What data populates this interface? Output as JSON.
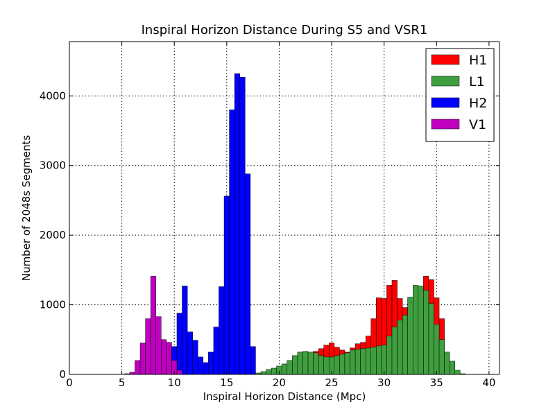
{
  "chart_data": {
    "type": "bar",
    "chart_kind": "histogram",
    "title": "Inspiral Horizon Distance During S5 and VSR1",
    "xlabel": "Inspiral Horizon Distance (Mpc)",
    "ylabel": "Number of 2048s Segments",
    "xlim": [
      0,
      41
    ],
    "ylim": [
      0,
      4780
    ],
    "x_ticks": [
      0,
      5,
      10,
      15,
      20,
      25,
      30,
      35,
      40
    ],
    "y_ticks": [
      0,
      1000,
      2000,
      3000,
      4000
    ],
    "grid": true,
    "legend_position": "top-right",
    "bin_width": 0.5,
    "series": [
      {
        "name": "H1",
        "color": "#ff0000",
        "bins": [
          [
            22.5,
            200
          ],
          [
            23.0,
            270
          ],
          [
            23.5,
            330
          ],
          [
            24.0,
            370
          ],
          [
            24.5,
            420
          ],
          [
            25.0,
            450
          ],
          [
            25.5,
            390
          ],
          [
            26.0,
            350
          ],
          [
            26.5,
            320
          ],
          [
            27.0,
            380
          ],
          [
            27.5,
            440
          ],
          [
            28.0,
            460
          ],
          [
            28.5,
            550
          ],
          [
            29.0,
            800
          ],
          [
            29.5,
            1100
          ],
          [
            30.0,
            1090
          ],
          [
            30.5,
            1280
          ],
          [
            31.0,
            1350
          ],
          [
            31.5,
            1090
          ],
          [
            32.0,
            960
          ],
          [
            32.5,
            1080
          ],
          [
            33.0,
            1140
          ],
          [
            33.5,
            1130
          ],
          [
            34.0,
            1410
          ],
          [
            34.5,
            1360
          ],
          [
            35.0,
            1100
          ],
          [
            35.5,
            800
          ]
        ]
      },
      {
        "name": "L1",
        "color": "#3f9f3f",
        "bins": [
          [
            17.5,
            10
          ],
          [
            18.0,
            20
          ],
          [
            18.5,
            40
          ],
          [
            19.0,
            70
          ],
          [
            19.5,
            90
          ],
          [
            20.0,
            120
          ],
          [
            20.5,
            150
          ],
          [
            21.0,
            200
          ],
          [
            21.5,
            270
          ],
          [
            22.0,
            320
          ],
          [
            22.5,
            330
          ],
          [
            23.0,
            320
          ],
          [
            23.5,
            310
          ],
          [
            24.0,
            270
          ],
          [
            24.5,
            250
          ],
          [
            25.0,
            250
          ],
          [
            25.5,
            270
          ],
          [
            26.0,
            290
          ],
          [
            26.5,
            310
          ],
          [
            27.0,
            350
          ],
          [
            27.5,
            360
          ],
          [
            28.0,
            370
          ],
          [
            28.5,
            380
          ],
          [
            29.0,
            390
          ],
          [
            29.5,
            410
          ],
          [
            30.0,
            420
          ],
          [
            30.5,
            550
          ],
          [
            31.0,
            680
          ],
          [
            31.5,
            780
          ],
          [
            32.0,
            850
          ],
          [
            32.5,
            1110
          ],
          [
            33.0,
            1280
          ],
          [
            33.5,
            1270
          ],
          [
            34.0,
            1210
          ],
          [
            34.5,
            1020
          ],
          [
            35.0,
            720
          ],
          [
            35.5,
            500
          ],
          [
            36.0,
            320
          ],
          [
            36.5,
            190
          ],
          [
            37.0,
            60
          ],
          [
            37.5,
            10
          ]
        ]
      },
      {
        "name": "H2",
        "color": "#0000ff",
        "bins": [
          [
            9.5,
            160
          ],
          [
            10.0,
            400
          ],
          [
            10.5,
            880
          ],
          [
            11.0,
            1270
          ],
          [
            11.5,
            610
          ],
          [
            12.0,
            490
          ],
          [
            12.5,
            250
          ],
          [
            13.0,
            170
          ],
          [
            13.5,
            320
          ],
          [
            14.0,
            680
          ],
          [
            14.5,
            1260
          ],
          [
            15.0,
            2560
          ],
          [
            15.5,
            3800
          ],
          [
            16.0,
            4320
          ],
          [
            16.5,
            4270
          ],
          [
            17.0,
            2880
          ],
          [
            17.5,
            400
          ]
        ]
      },
      {
        "name": "V1",
        "color": "#bf00bf",
        "bins": [
          [
            5.5,
            10
          ],
          [
            6.0,
            30
          ],
          [
            6.5,
            200
          ],
          [
            7.0,
            450
          ],
          [
            7.5,
            800
          ],
          [
            8.0,
            1410
          ],
          [
            8.5,
            830
          ],
          [
            9.0,
            500
          ],
          [
            9.5,
            460
          ],
          [
            10.0,
            200
          ],
          [
            10.5,
            60
          ]
        ]
      }
    ]
  }
}
